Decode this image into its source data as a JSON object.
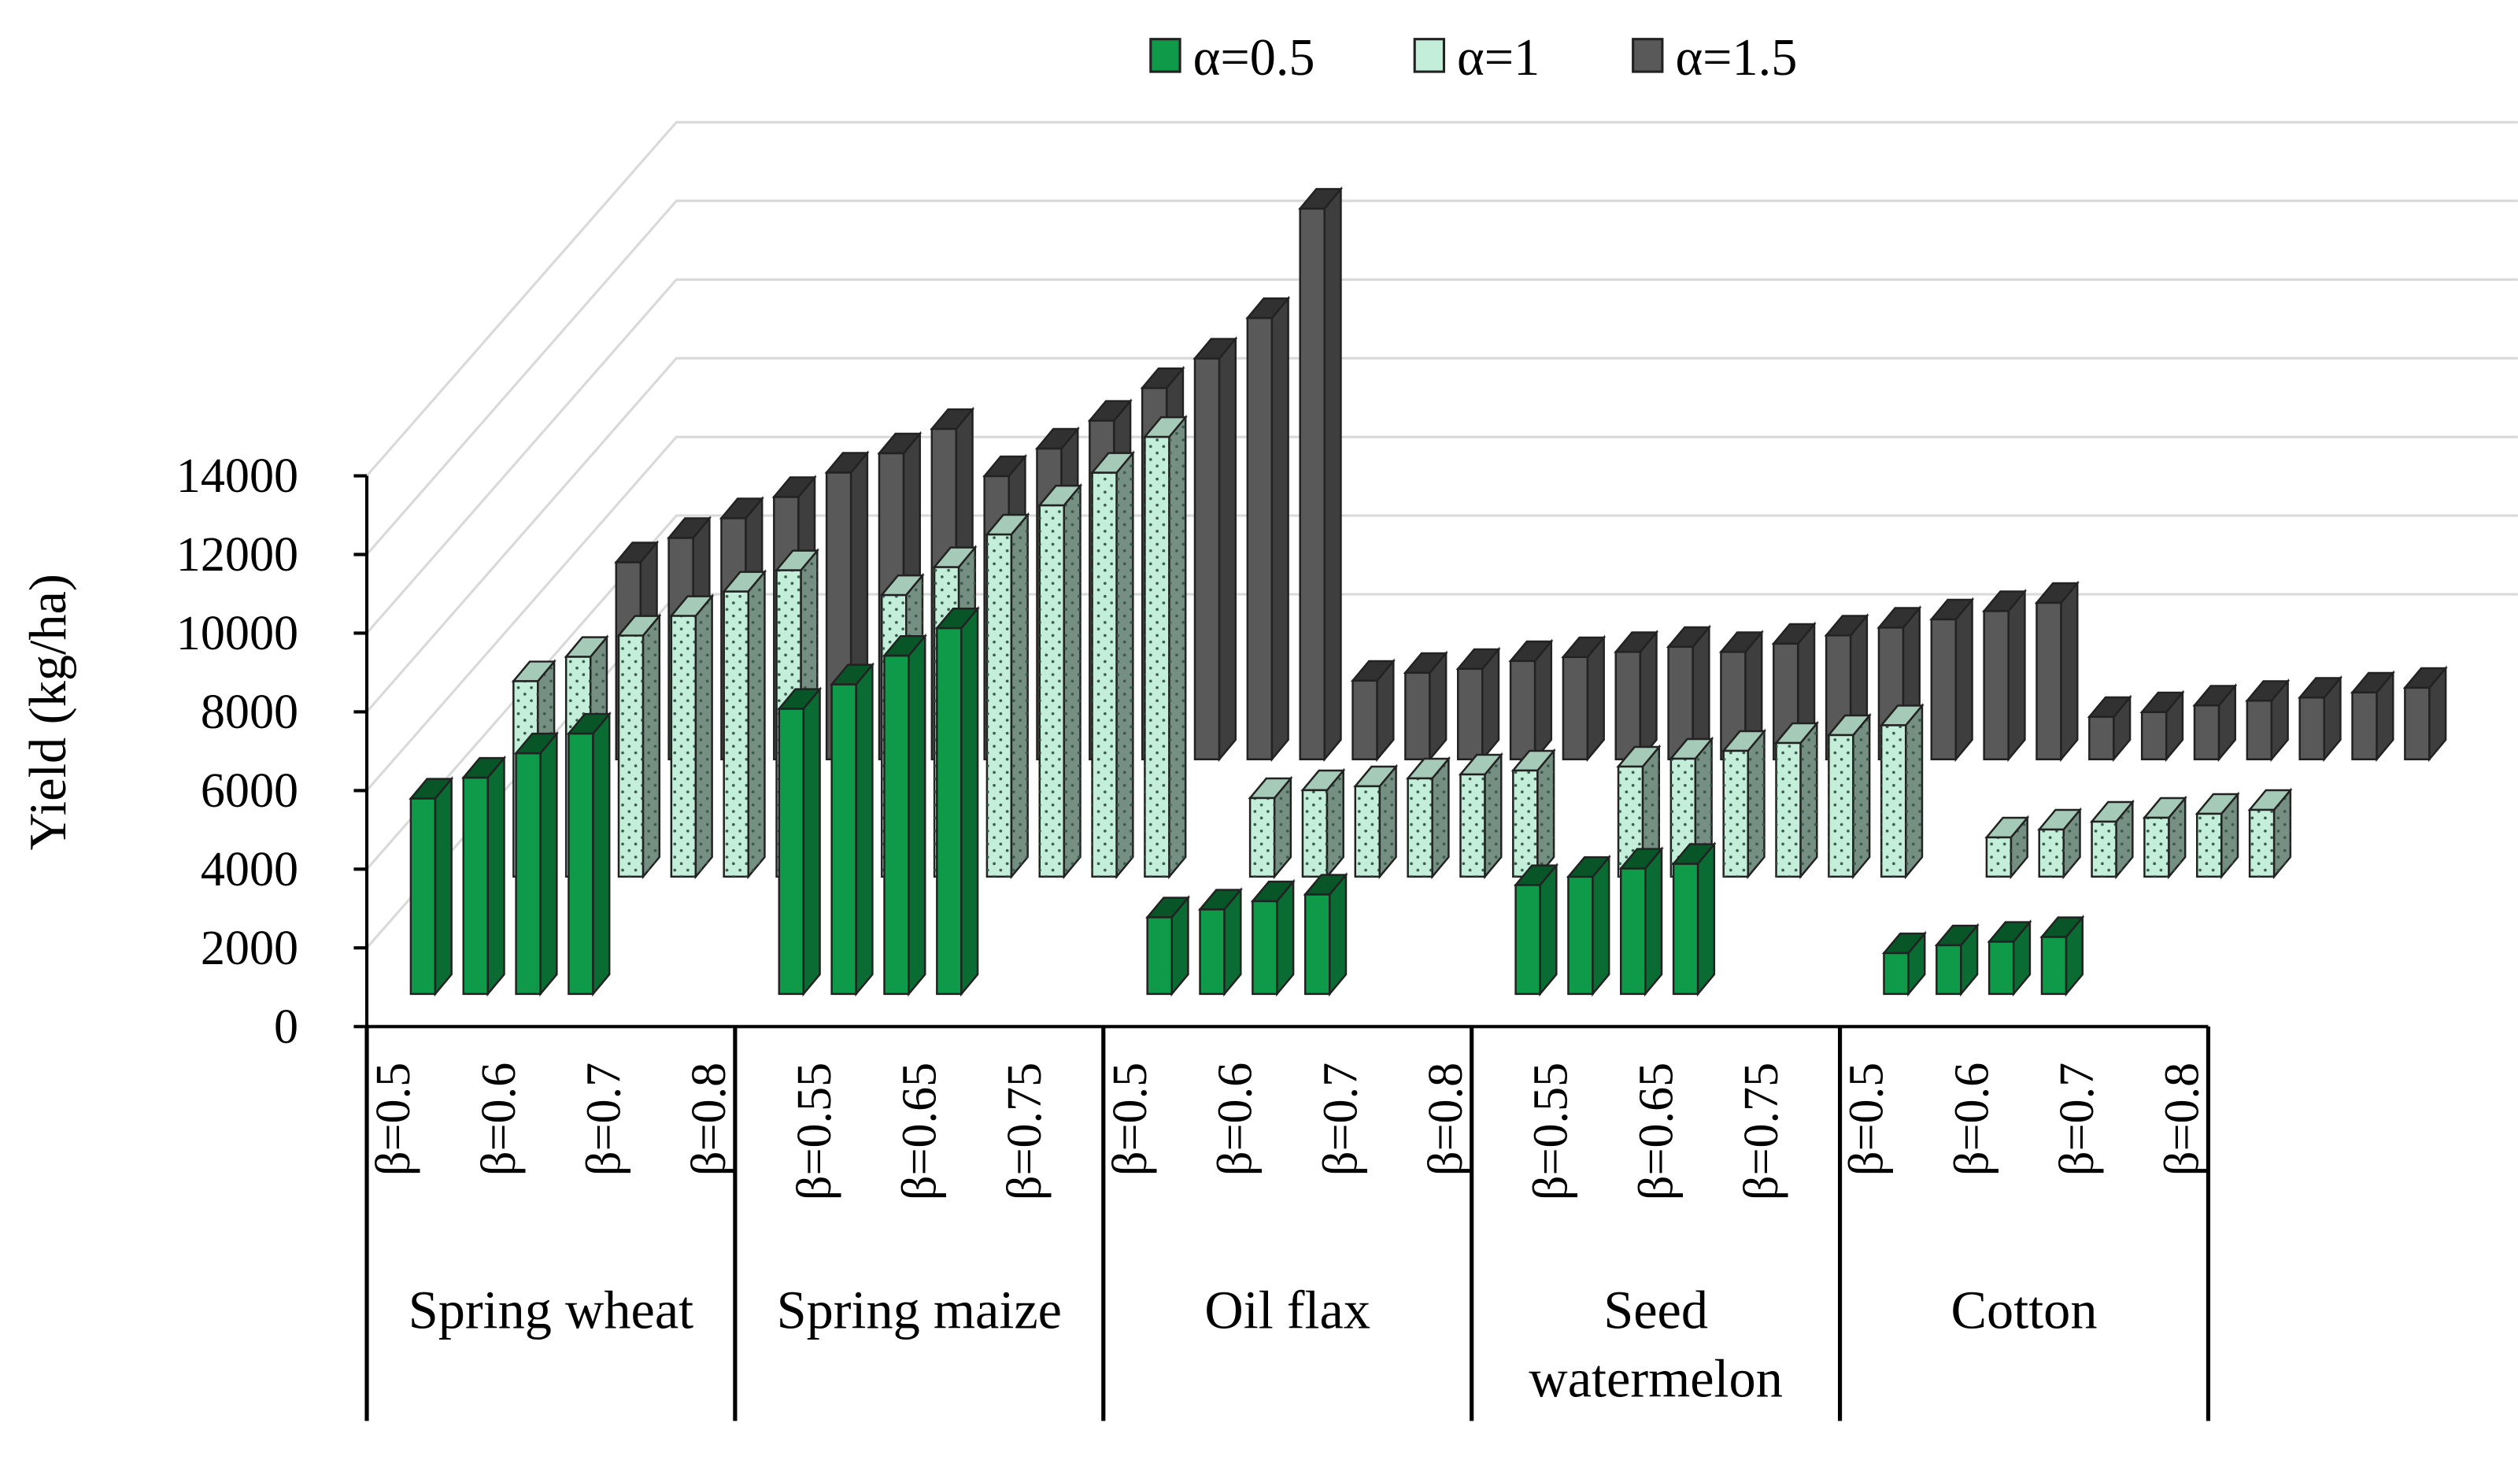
{
  "chart_data": {
    "type": "bar3d",
    "y_label": "Yield  (kg/ha)",
    "ylim": [
      0,
      14000
    ],
    "yticks": [
      0,
      2000,
      4000,
      6000,
      8000,
      10000,
      12000,
      14000
    ],
    "grid": true,
    "legend": "top",
    "groups": [
      "Spring wheat",
      "Spring maize",
      "Oil flax",
      "Seed watermelon",
      "Cotton"
    ],
    "categories": [
      "β=0.5",
      null,
      "β=0.6",
      null,
      "β=0.7",
      null,
      "β=0.8",
      null,
      "β=0.55",
      null,
      "β=0.65",
      null,
      "β=0.75",
      null,
      "β=0.5",
      null,
      "β=0.6",
      null,
      "β=0.7",
      null,
      "β=0.8",
      null,
      "β=0.55",
      null,
      "β=0.65",
      null,
      "β=0.75",
      null,
      "β=0.5",
      null,
      "β=0.6",
      null,
      "β=0.7",
      null,
      "β=0.8"
    ],
    "series": [
      {
        "name": "α=0.5",
        "color": "#0e9a48",
        "values": [
          4970,
          5500,
          6120,
          6620,
          null,
          null,
          null,
          7250,
          7870,
          8600,
          9300,
          null,
          null,
          null,
          1950,
          2150,
          2360,
          2530,
          null,
          null,
          null,
          2770,
          2980,
          3190,
          3310,
          null,
          null,
          null,
          1040,
          1240,
          1330,
          1450,
          null,
          null,
          null
        ]
      },
      {
        "name": "α=1",
        "color": "#c3eed9",
        "values": [
          4970,
          5590,
          6130,
          6630,
          7250,
          7790,
          null,
          7160,
          7870,
          8700,
          9440,
          10270,
          11180,
          null,
          2000,
          2200,
          2300,
          2500,
          2600,
          2700,
          null,
          2800,
          3000,
          3200,
          3400,
          3600,
          3850,
          null,
          1000,
          1200,
          1400,
          1500,
          1600,
          1700,
          null
        ]
      },
      {
        "name": "α=1.5",
        "color": "#595959",
        "values": [
          5010,
          5630,
          6130,
          6670,
          7290,
          7780,
          8400,
          7200,
          7900,
          8610,
          9440,
          10190,
          11220,
          14000,
          2000,
          2200,
          2300,
          2500,
          2600,
          2730,
          2860,
          2730,
          2940,
          3150,
          3350,
          3560,
          3770,
          3980,
          1080,
          1200,
          1370,
          1490,
          1570,
          1700,
          1820
        ]
      }
    ]
  }
}
